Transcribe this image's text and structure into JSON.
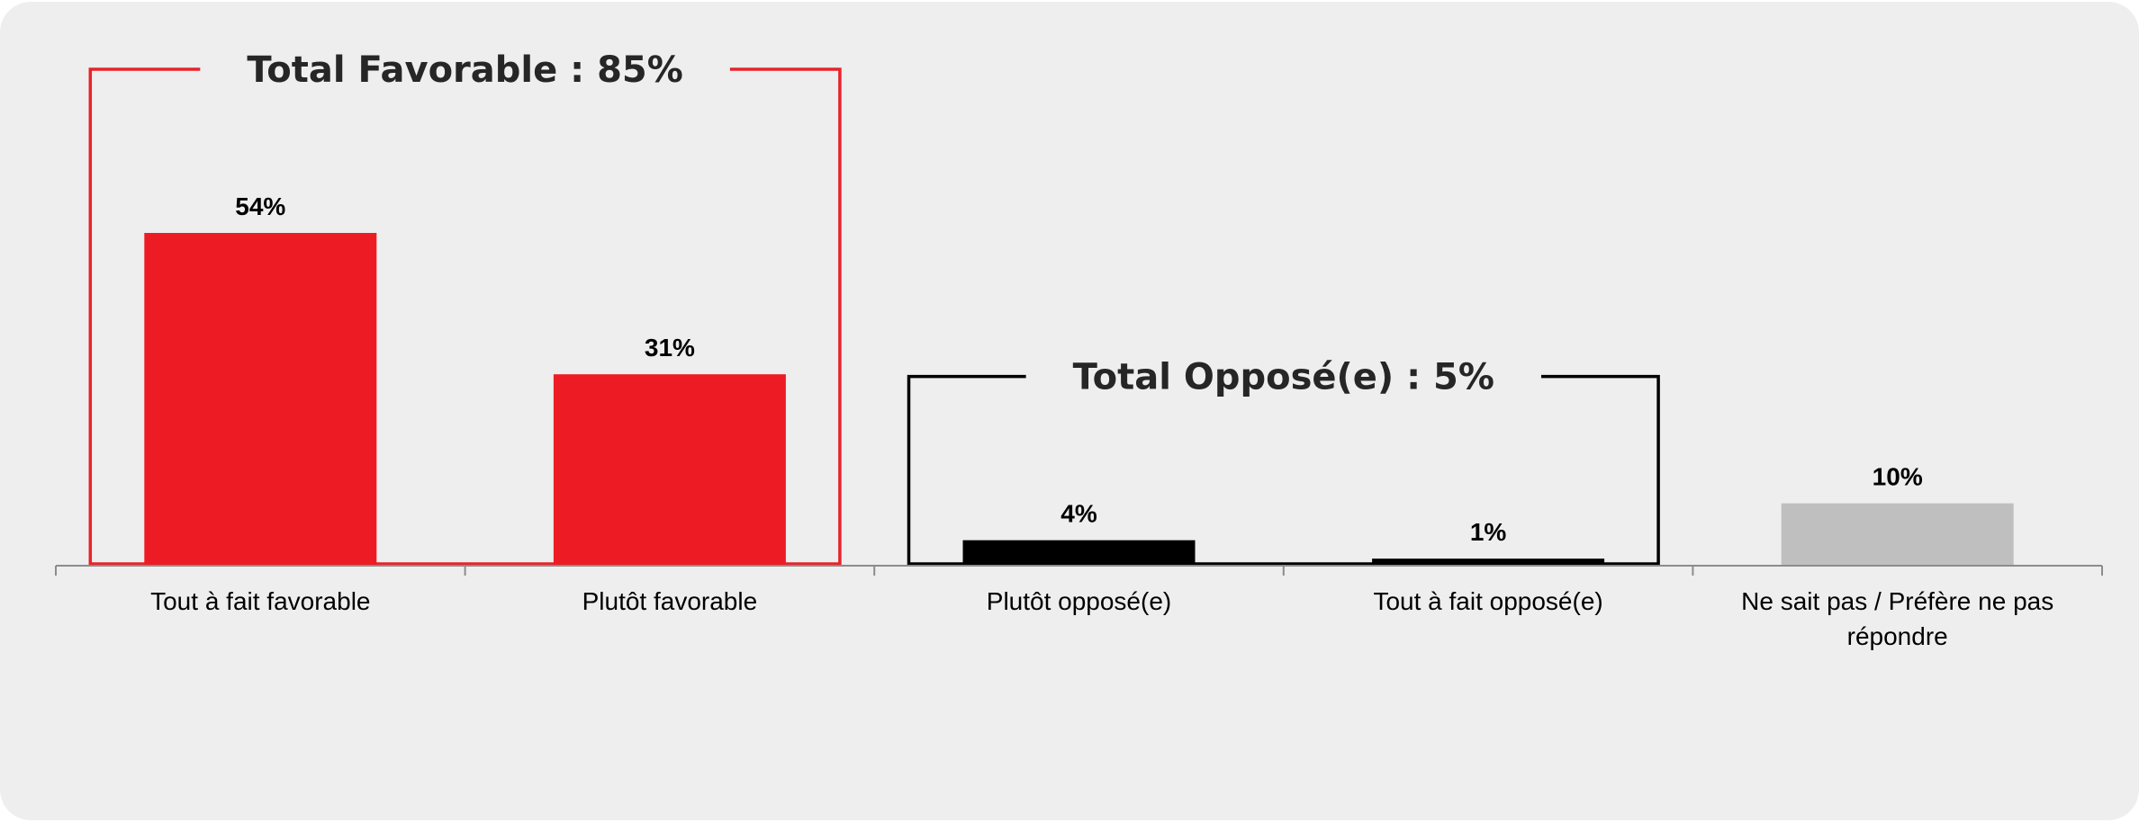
{
  "chart_data": {
    "type": "bar",
    "categories": [
      [
        "Tout à fait favorable"
      ],
      [
        "Plutôt favorable"
      ],
      [
        "Plutôt opposé(e)"
      ],
      [
        "Tout à fait opposé(e)"
      ],
      [
        "Ne sait pas / Préfère ne pas",
        "répondre"
      ]
    ],
    "values": [
      54,
      31,
      4,
      1,
      10
    ],
    "value_labels": [
      "54%",
      "31%",
      "4%",
      "1%",
      "10%"
    ],
    "bar_colors": [
      "#ed1c24",
      "#ed1c24",
      "#000000",
      "#000000",
      "#bfbfbf"
    ],
    "ylim": [
      0,
      60
    ],
    "grid": false,
    "legend": "none",
    "groups": [
      {
        "label": "Total Favorable : 85%",
        "first": 0,
        "last": 1,
        "color": "#e8232a"
      },
      {
        "label": "Total Opposé(e) : 5%",
        "first": 2,
        "last": 3,
        "color": "#000000"
      }
    ]
  },
  "colors": {
    "background": "#eeeeee",
    "axis": "#8c8c8c"
  }
}
